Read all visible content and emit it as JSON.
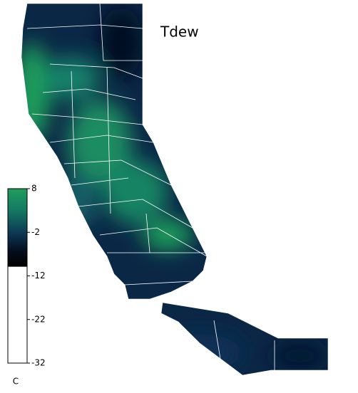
{
  "title": "Tdew",
  "colorbar": {
    "lim": [
      8,
      -32
    ],
    "ticks": [
      8,
      -2,
      -12,
      -22,
      -32
    ],
    "unit": "C"
  }
}
